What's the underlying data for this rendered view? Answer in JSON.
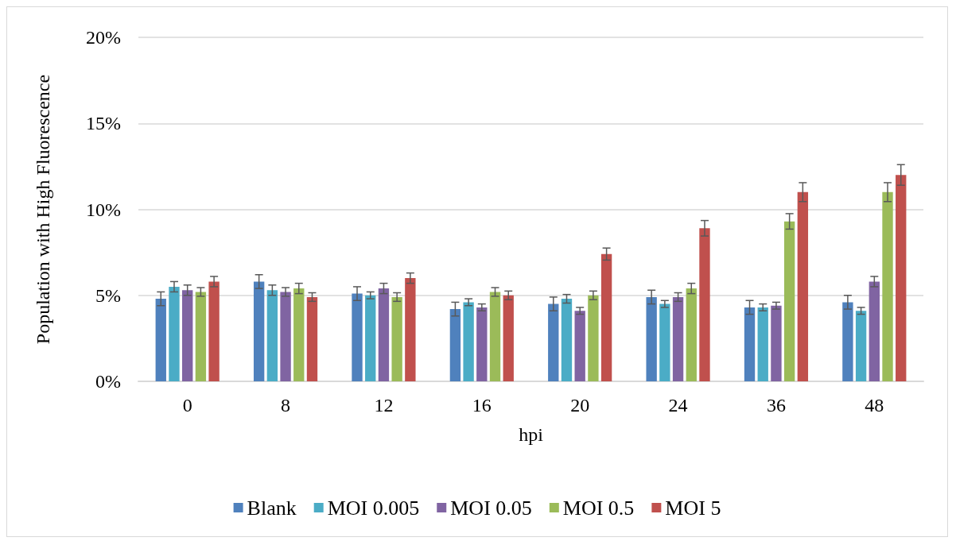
{
  "chart_data": {
    "type": "bar",
    "xlabel": "hpi",
    "ylabel": "Population with High Fluorescence",
    "categories": [
      "0",
      "8",
      "12",
      "16",
      "20",
      "24",
      "36",
      "48"
    ],
    "series": [
      {
        "name": "Blank",
        "color": "#4f81bd",
        "values": [
          4.8,
          5.8,
          5.1,
          4.2,
          4.5,
          4.9,
          4.3,
          4.6
        ],
        "errors": [
          0.4,
          0.4,
          0.4,
          0.4,
          0.4,
          0.4,
          0.4,
          0.4
        ]
      },
      {
        "name": "MOI 0.005",
        "color": "#4bacc6",
        "values": [
          5.5,
          5.3,
          5.0,
          4.6,
          4.8,
          4.5,
          4.3,
          4.1
        ],
        "errors": [
          0.3,
          0.3,
          0.2,
          0.2,
          0.25,
          0.2,
          0.2,
          0.2
        ]
      },
      {
        "name": "MOI 0.05",
        "color": "#8064a2",
        "values": [
          5.3,
          5.2,
          5.4,
          4.3,
          4.1,
          4.9,
          4.4,
          5.8
        ],
        "errors": [
          0.3,
          0.25,
          0.3,
          0.2,
          0.2,
          0.25,
          0.2,
          0.3
        ]
      },
      {
        "name": "MOI 0.5",
        "color": "#9bbb59",
        "values": [
          5.2,
          5.4,
          4.9,
          5.2,
          5.0,
          5.4,
          9.3,
          11.0
        ],
        "errors": [
          0.25,
          0.3,
          0.25,
          0.25,
          0.25,
          0.3,
          0.45,
          0.55
        ]
      },
      {
        "name": "MOI 5",
        "color": "#c0504d",
        "values": [
          5.8,
          4.9,
          6.0,
          5.0,
          7.4,
          8.9,
          11.0,
          12.0
        ],
        "errors": [
          0.3,
          0.25,
          0.3,
          0.25,
          0.35,
          0.45,
          0.55,
          0.6
        ]
      }
    ],
    "ylim": [
      0,
      20
    ],
    "yticks": [
      {
        "value": 0,
        "label": "0%"
      },
      {
        "value": 5,
        "label": "5%"
      },
      {
        "value": 10,
        "label": "10%"
      },
      {
        "value": 15,
        "label": "15%"
      },
      {
        "value": 20,
        "label": "20%"
      }
    ],
    "grid": "y",
    "legend": "bottom"
  }
}
